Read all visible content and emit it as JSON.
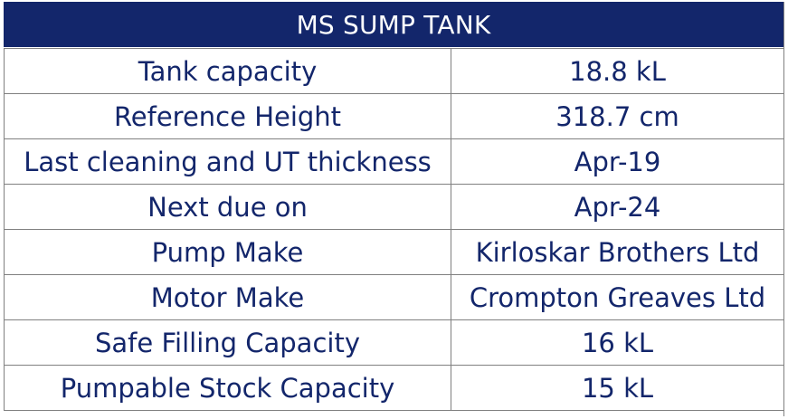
{
  "header": {
    "title": "MS SUMP TANK"
  },
  "rows": [
    {
      "label": "Tank capacity",
      "value": "18.8 kL"
    },
    {
      "label": "Reference Height",
      "value": "318.7 cm"
    },
    {
      "label": "Last cleaning and UT thickness",
      "value": "Apr-19"
    },
    {
      "label": "Next due on",
      "value": "Apr-24"
    },
    {
      "label": "Pump Make",
      "value": "Kirloskar Brothers Ltd"
    },
    {
      "label": "Motor Make",
      "value": "Crompton Greaves Ltd"
    },
    {
      "label": "Safe Filling Capacity",
      "value": "16 kL"
    },
    {
      "label": "Pumpable Stock Capacity",
      "value": "15 kL"
    }
  ],
  "colors": {
    "header_bg": "#13266b",
    "header_text": "#ffffff",
    "cell_text": "#13266b",
    "grid": "#808080"
  }
}
